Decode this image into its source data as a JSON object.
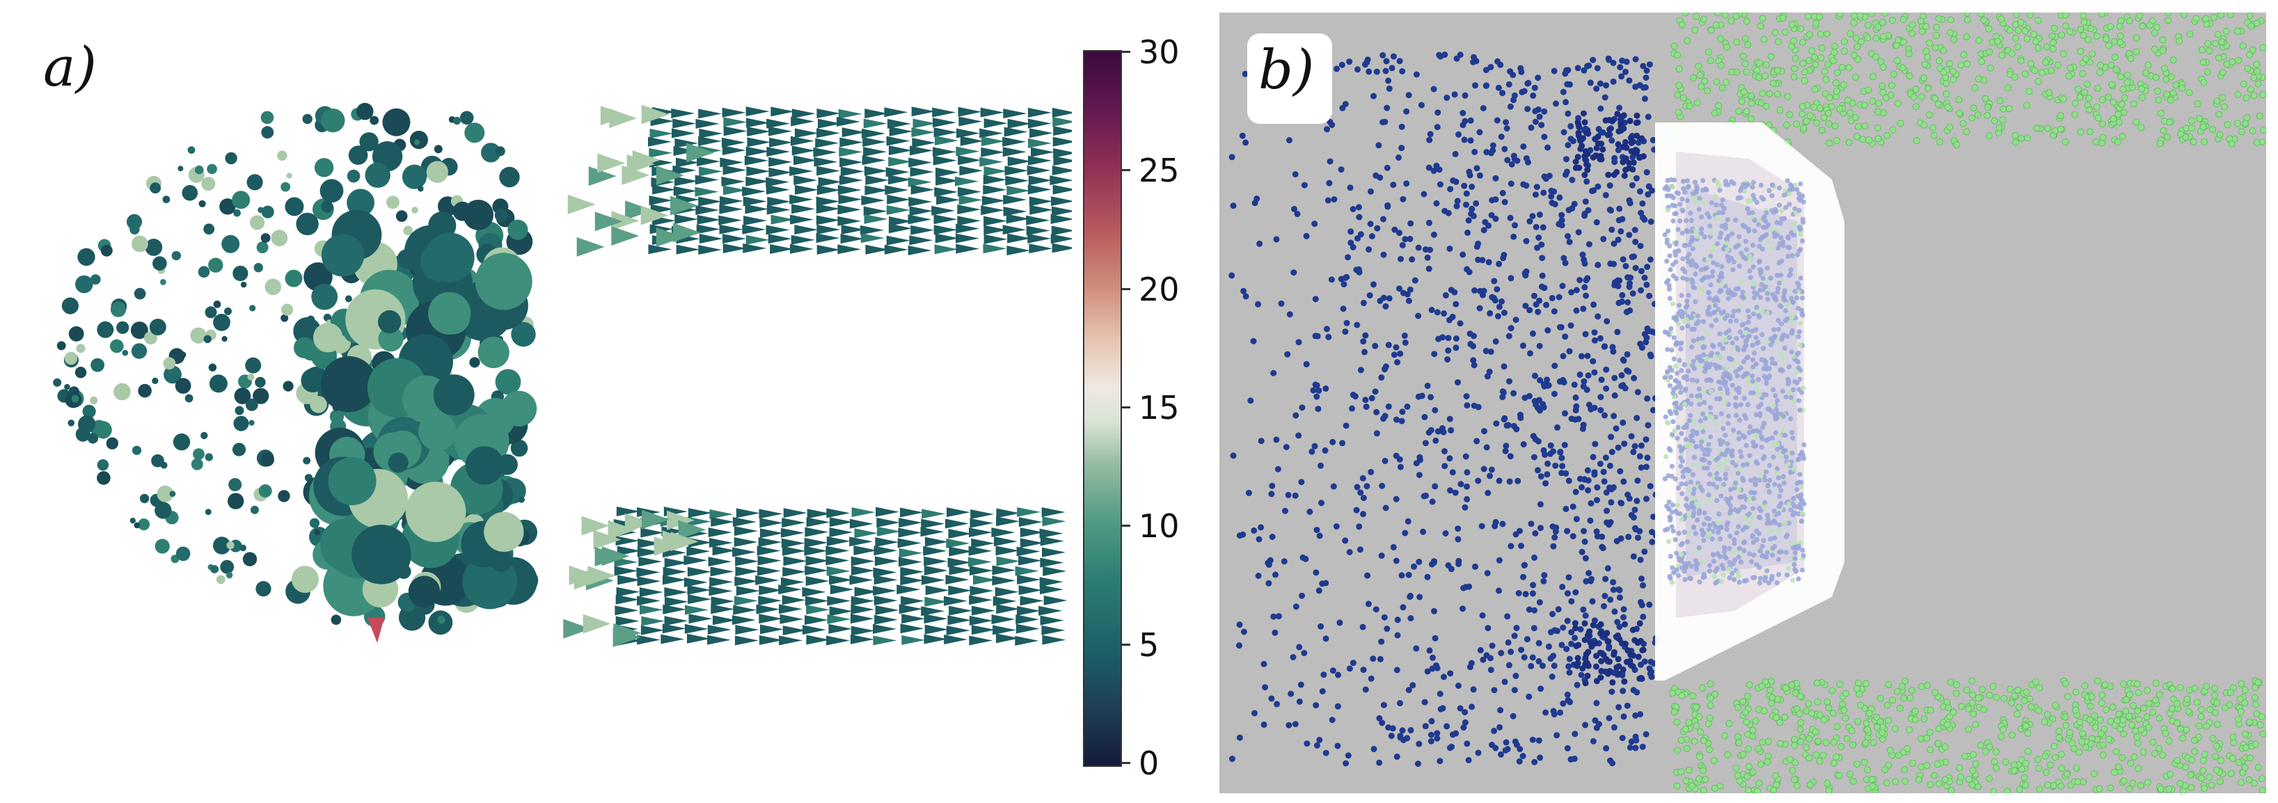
{
  "panels": {
    "a": {
      "label": "a)"
    },
    "b": {
      "label": "b)"
    }
  },
  "colorbar": {
    "ticks": [
      "30",
      "25",
      "20",
      "15",
      "10",
      "5",
      "0"
    ],
    "range": [
      0,
      30
    ]
  },
  "colors": {
    "background_b": "#bdbdbd",
    "particles_blue": "#1f3a8f",
    "particles_green": "#8fe08a",
    "particles_light": "#9aa6d8",
    "glyph_dark": "#1d5a60",
    "glyph_mid": "#2e7f72",
    "glyph_light": "#a9c9a8"
  }
}
